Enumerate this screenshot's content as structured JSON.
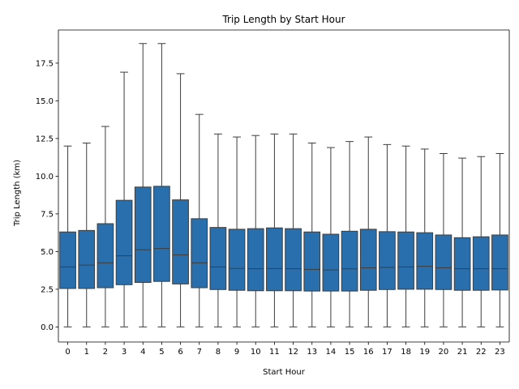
{
  "chart_data": {
    "type": "box",
    "title": "Trip Length by Start Hour",
    "xlabel": "Start Hour",
    "ylabel": "Trip Length (km)",
    "ylim": [
      -1.0,
      19.7
    ],
    "yticks": [
      0.0,
      2.5,
      5.0,
      7.5,
      10.0,
      12.5,
      15.0,
      17.5
    ],
    "ytick_labels": [
      "0.0",
      "2.5",
      "5.0",
      "7.5",
      "10.0",
      "12.5",
      "15.0",
      "17.5"
    ],
    "grid": false,
    "box_color": "#2a6fad",
    "line_color": "#3d3d3d",
    "categories": [
      "0",
      "1",
      "2",
      "3",
      "4",
      "5",
      "6",
      "7",
      "8",
      "9",
      "10",
      "11",
      "12",
      "13",
      "14",
      "15",
      "16",
      "17",
      "18",
      "19",
      "20",
      "21",
      "22",
      "23"
    ],
    "boxes": [
      {
        "whislo": 0,
        "q1": 2.55,
        "med": 3.98,
        "q3": 6.3,
        "whishi": 12.0
      },
      {
        "whislo": 0,
        "q1": 2.55,
        "med": 4.1,
        "q3": 6.4,
        "whishi": 12.2
      },
      {
        "whislo": 0,
        "q1": 2.6,
        "med": 4.25,
        "q3": 6.85,
        "whishi": 13.3
      },
      {
        "whislo": 0,
        "q1": 2.8,
        "med": 4.72,
        "q3": 8.4,
        "whishi": 16.9
      },
      {
        "whislo": 0,
        "q1": 2.95,
        "med": 5.12,
        "q3": 9.28,
        "whishi": 18.8
      },
      {
        "whislo": 0,
        "q1": 3.02,
        "med": 5.2,
        "q3": 9.33,
        "whishi": 18.8
      },
      {
        "whislo": 0,
        "q1": 2.85,
        "med": 4.78,
        "q3": 8.43,
        "whishi": 16.8
      },
      {
        "whislo": 0,
        "q1": 2.6,
        "med": 4.25,
        "q3": 7.18,
        "whishi": 14.1
      },
      {
        "whislo": 0,
        "q1": 2.48,
        "med": 3.98,
        "q3": 6.6,
        "whishi": 12.8
      },
      {
        "whislo": 0,
        "q1": 2.43,
        "med": 3.88,
        "q3": 6.48,
        "whishi": 12.6
      },
      {
        "whislo": 0,
        "q1": 2.4,
        "med": 3.86,
        "q3": 6.52,
        "whishi": 12.7
      },
      {
        "whislo": 0,
        "q1": 2.4,
        "med": 3.87,
        "q3": 6.57,
        "whishi": 12.8
      },
      {
        "whislo": 0,
        "q1": 2.4,
        "med": 3.86,
        "q3": 6.52,
        "whishi": 12.8
      },
      {
        "whislo": 0,
        "q1": 2.38,
        "med": 3.82,
        "q3": 6.3,
        "whishi": 12.2
      },
      {
        "whislo": 0,
        "q1": 2.38,
        "med": 3.78,
        "q3": 6.15,
        "whishi": 11.9
      },
      {
        "whislo": 0,
        "q1": 2.38,
        "med": 3.85,
        "q3": 6.35,
        "whishi": 12.3
      },
      {
        "whislo": 0,
        "q1": 2.43,
        "med": 3.92,
        "q3": 6.48,
        "whishi": 12.6
      },
      {
        "whislo": 0,
        "q1": 2.48,
        "med": 3.95,
        "q3": 6.32,
        "whishi": 12.1
      },
      {
        "whislo": 0,
        "q1": 2.5,
        "med": 3.98,
        "q3": 6.3,
        "whishi": 12.0
      },
      {
        "whislo": 0,
        "q1": 2.5,
        "med": 4.02,
        "q3": 6.25,
        "whishi": 11.8
      },
      {
        "whislo": 0,
        "q1": 2.48,
        "med": 3.92,
        "q3": 6.1,
        "whishi": 11.5
      },
      {
        "whislo": 0,
        "q1": 2.43,
        "med": 3.86,
        "q3": 5.92,
        "whishi": 11.2
      },
      {
        "whislo": 0,
        "q1": 2.43,
        "med": 3.86,
        "q3": 5.98,
        "whishi": 11.3
      },
      {
        "whislo": 0,
        "q1": 2.45,
        "med": 3.86,
        "q3": 6.1,
        "whishi": 11.5
      }
    ]
  }
}
